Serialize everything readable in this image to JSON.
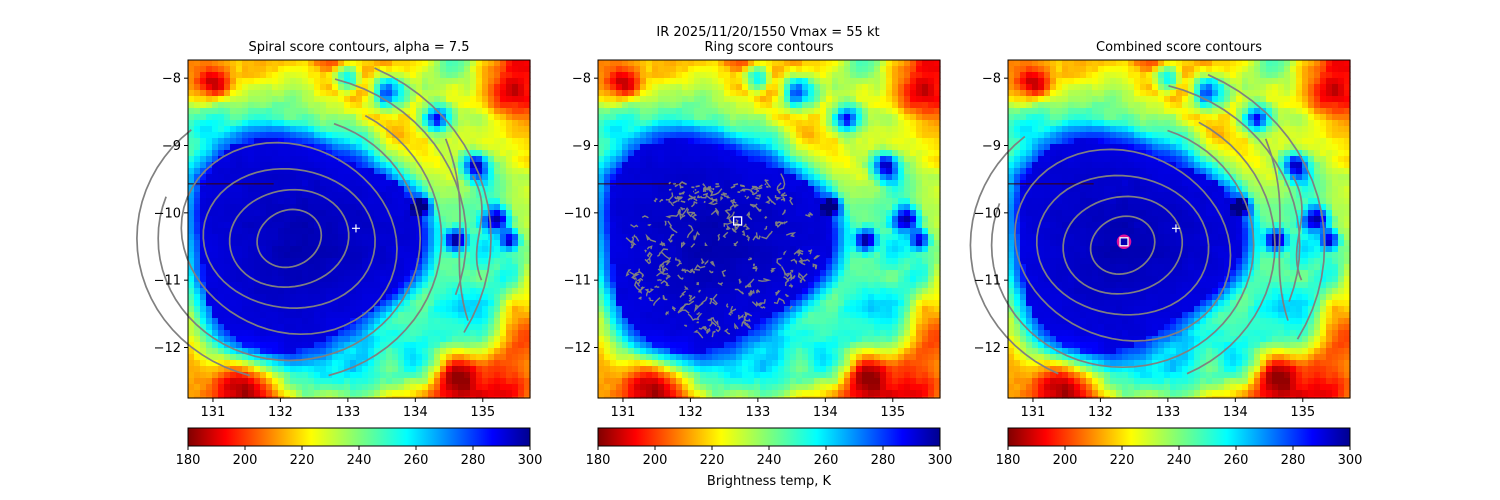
{
  "figure_title": "IR  2025/11/20/1550    Vmax = 55 kt",
  "colorbar_label": "Brightness temp, K",
  "colormap": "jet",
  "colors": {
    "contour": "#808080",
    "center_cross": "#ffffff",
    "best_point_square": "#ffffff",
    "best_point_circle": "#e0109a"
  },
  "chart_data": [
    {
      "type": "heatmap",
      "title": "Spiral score contours, alpha =  7.5",
      "xlim": [
        130.63,
        135.7
      ],
      "ylim": [
        -12.75,
        -7.73
      ],
      "xticks": [
        131,
        132,
        133,
        134,
        135
      ],
      "yticks": [
        -8,
        -9,
        -10,
        -11,
        -12
      ],
      "overlay": "spiral-contours",
      "center_marker": [
        133.12,
        -10.23
      ]
    },
    {
      "type": "heatmap",
      "title": "Ring score contours",
      "xlim": [
        130.63,
        135.7
      ],
      "ylim": [
        -12.75,
        -7.73
      ],
      "xticks": [
        131,
        132,
        133,
        134,
        135
      ],
      "yticks": [
        -8,
        -9,
        -10,
        -11,
        -12
      ],
      "overlay": "ring-contours",
      "best_point": [
        132.7,
        -10.12
      ]
    },
    {
      "type": "heatmap",
      "title": "Combined score contours",
      "xlim": [
        130.63,
        135.7
      ],
      "ylim": [
        -12.75,
        -7.73
      ],
      "xticks": [
        131,
        132,
        133,
        134,
        135
      ],
      "yticks": [
        -8,
        -9,
        -10,
        -11,
        -12
      ],
      "overlay": "spiral-contours",
      "center_marker": [
        133.12,
        -10.23
      ],
      "best_point": [
        132.35,
        -10.43
      ]
    }
  ],
  "colorbar": {
    "vmin": 180,
    "vmax": 300,
    "ticks": [
      180,
      200,
      220,
      240,
      260,
      280,
      300
    ]
  }
}
